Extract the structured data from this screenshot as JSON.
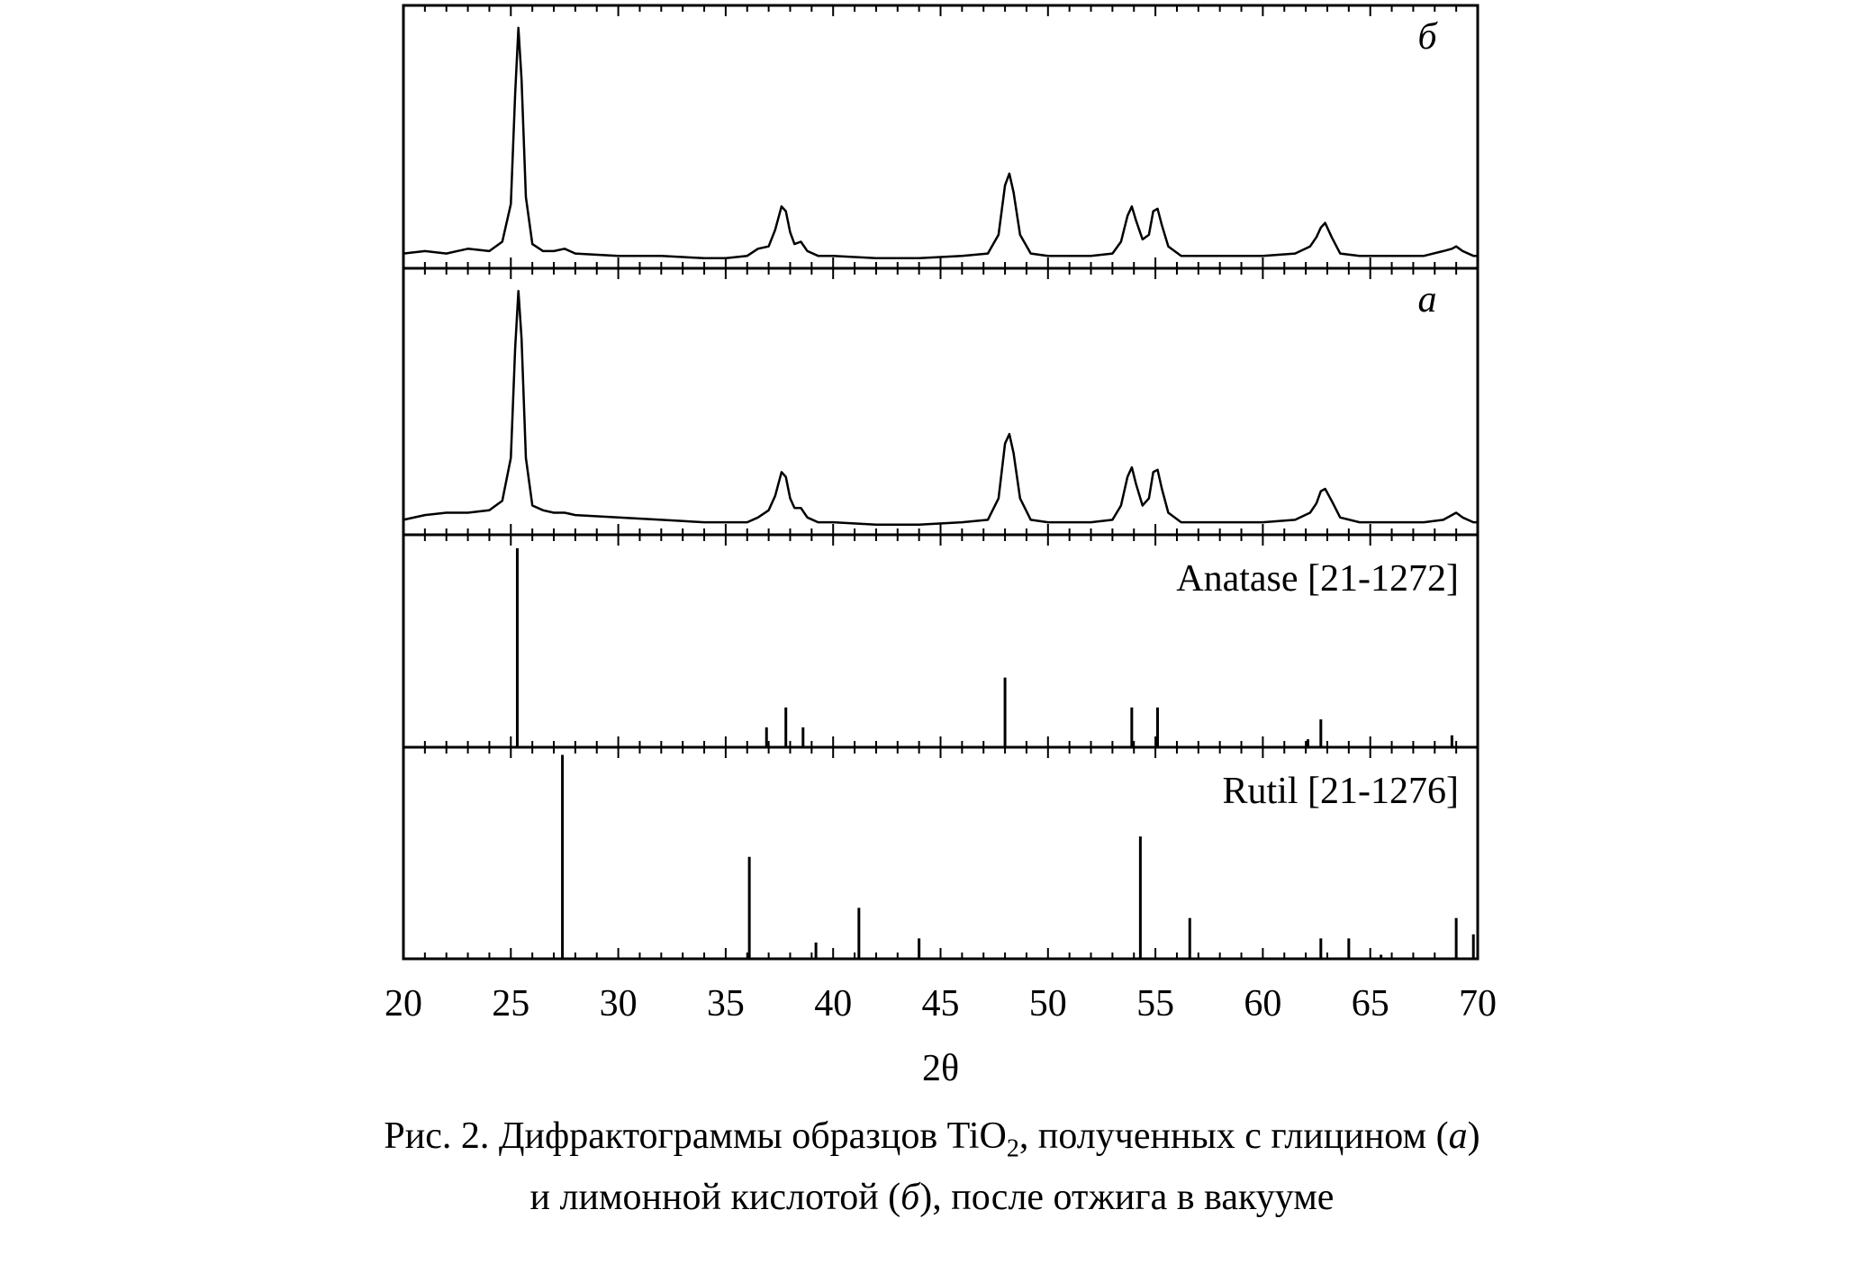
{
  "chart_data": [
    {
      "type": "line",
      "panel_label": "б",
      "x": [
        20,
        21,
        22,
        23,
        24,
        24.6,
        25.0,
        25.2,
        25.35,
        25.5,
        25.7,
        26.0,
        26.5,
        27,
        27.5,
        28,
        30,
        32,
        34,
        35,
        36,
        36.5,
        37.0,
        37.3,
        37.6,
        37.8,
        38.0,
        38.2,
        38.5,
        38.8,
        39.3,
        40,
        42,
        44,
        46,
        47.2,
        47.7,
        48.0,
        48.2,
        48.4,
        48.7,
        49.2,
        50,
        52,
        53,
        53.4,
        53.7,
        53.9,
        54.1,
        54.4,
        54.7,
        54.9,
        55.1,
        55.3,
        55.6,
        56.2,
        58,
        60,
        61.5,
        62.2,
        62.5,
        62.7,
        62.9,
        63.2,
        63.6,
        64.5,
        66,
        67.5,
        68.4,
        68.8,
        69.0,
        69.3,
        69.8,
        70
      ],
      "values": [
        0.04,
        0.05,
        0.04,
        0.06,
        0.05,
        0.09,
        0.25,
        0.72,
        1.0,
        0.78,
        0.28,
        0.08,
        0.05,
        0.05,
        0.06,
        0.04,
        0.03,
        0.03,
        0.02,
        0.02,
        0.03,
        0.06,
        0.07,
        0.14,
        0.24,
        0.22,
        0.13,
        0.08,
        0.09,
        0.05,
        0.03,
        0.03,
        0.02,
        0.02,
        0.03,
        0.04,
        0.12,
        0.33,
        0.38,
        0.3,
        0.12,
        0.04,
        0.03,
        0.03,
        0.04,
        0.09,
        0.2,
        0.24,
        0.18,
        0.1,
        0.12,
        0.22,
        0.23,
        0.16,
        0.07,
        0.03,
        0.03,
        0.03,
        0.04,
        0.07,
        0.11,
        0.15,
        0.17,
        0.11,
        0.04,
        0.03,
        0.03,
        0.03,
        0.05,
        0.06,
        0.07,
        0.05,
        0.03,
        0.03
      ],
      "ylim": [
        0,
        1.08
      ]
    },
    {
      "type": "line",
      "panel_label": "а",
      "x": [
        20,
        21,
        22,
        23,
        24,
        24.6,
        25.0,
        25.2,
        25.35,
        25.5,
        25.7,
        26.0,
        26.5,
        27,
        27.5,
        28,
        30,
        32,
        34,
        35,
        36,
        36.5,
        37.0,
        37.3,
        37.6,
        37.8,
        38.0,
        38.2,
        38.5,
        38.8,
        39.3,
        40,
        42,
        44,
        46,
        47.2,
        47.7,
        48.0,
        48.2,
        48.4,
        48.7,
        49.2,
        50,
        52,
        53,
        53.4,
        53.7,
        53.9,
        54.1,
        54.4,
        54.7,
        54.9,
        55.1,
        55.3,
        55.6,
        56.2,
        58,
        60,
        61.5,
        62.2,
        62.5,
        62.7,
        62.9,
        63.2,
        63.6,
        64.5,
        66,
        67.5,
        68.4,
        68.8,
        69.0,
        69.3,
        69.8,
        70
      ],
      "values": [
        0.04,
        0.06,
        0.07,
        0.07,
        0.08,
        0.12,
        0.3,
        0.76,
        1.0,
        0.8,
        0.3,
        0.1,
        0.08,
        0.07,
        0.07,
        0.06,
        0.05,
        0.04,
        0.03,
        0.03,
        0.03,
        0.05,
        0.08,
        0.14,
        0.24,
        0.22,
        0.13,
        0.09,
        0.09,
        0.05,
        0.03,
        0.03,
        0.02,
        0.02,
        0.03,
        0.04,
        0.13,
        0.36,
        0.4,
        0.32,
        0.13,
        0.04,
        0.03,
        0.03,
        0.04,
        0.1,
        0.22,
        0.26,
        0.19,
        0.1,
        0.13,
        0.24,
        0.25,
        0.17,
        0.07,
        0.03,
        0.03,
        0.03,
        0.04,
        0.07,
        0.11,
        0.16,
        0.17,
        0.12,
        0.05,
        0.03,
        0.03,
        0.03,
        0.04,
        0.06,
        0.07,
        0.05,
        0.03,
        0.03
      ],
      "ylim": [
        0,
        1.08
      ]
    },
    {
      "type": "bar",
      "legend": "Anatase [21-1272]",
      "x": [
        25.3,
        36.9,
        37.8,
        38.6,
        48.0,
        53.9,
        55.1,
        62.1,
        62.7,
        68.8
      ],
      "values": [
        100,
        10,
        20,
        10,
        35,
        20,
        20,
        4,
        14,
        6
      ],
      "ylim": [
        0,
        105
      ]
    },
    {
      "type": "bar",
      "legend": "Rutil [21-1276]",
      "x": [
        27.4,
        36.1,
        39.2,
        41.2,
        44.0,
        54.3,
        56.6,
        62.7,
        64.0,
        65.5,
        69.0,
        69.8
      ],
      "values": [
        100,
        50,
        8,
        25,
        10,
        60,
        20,
        10,
        10,
        2,
        20,
        12
      ],
      "ylim": [
        0,
        102
      ]
    }
  ],
  "axis": {
    "xlim": [
      20,
      70
    ],
    "xticks": [
      "20",
      "25",
      "30",
      "35",
      "40",
      "45",
      "50",
      "55",
      "60",
      "65",
      "70"
    ],
    "xlabel": "2θ"
  },
  "caption": {
    "line1_a": "Рис. 2. Дифрактограммы образцов TiO",
    "line1_sub": "2",
    "line1_b": ", полученных с глицином (",
    "line1_c": "а",
    "line1_d": ")",
    "line2_a": "и лимонной кислотой (",
    "line2_b": "б",
    "line2_c": "), после отжига в вакууме"
  }
}
